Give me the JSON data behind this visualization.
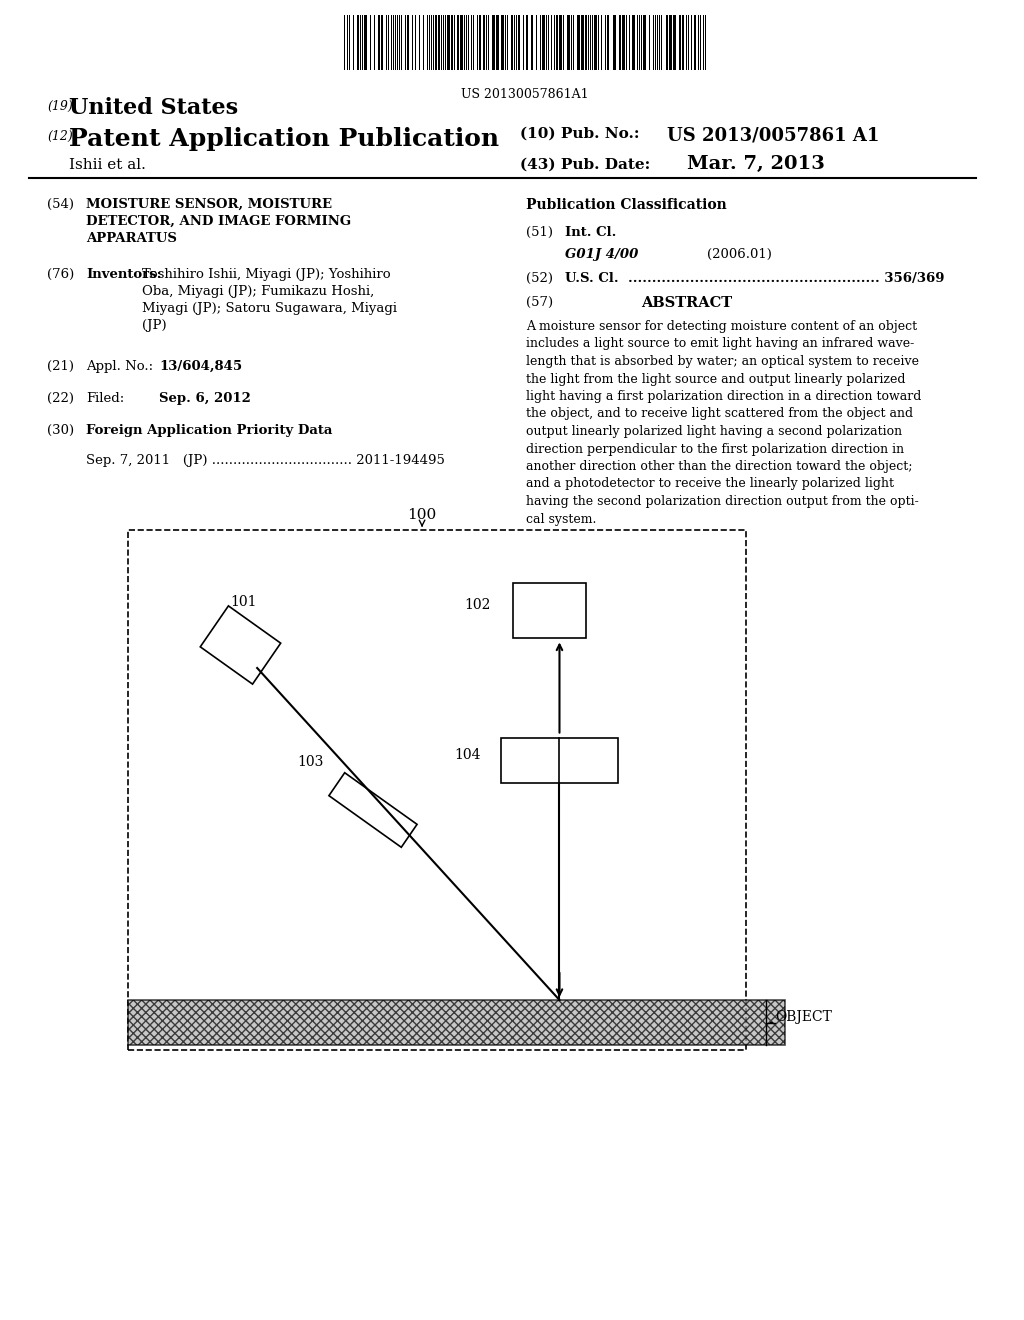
{
  "bg_color": "#ffffff",
  "barcode_text": "US 20130057861A1",
  "patent_number_label": "(19)",
  "patent_title_19": "United States",
  "patent_number_label2": "(12)",
  "patent_title_12": "Patent Application Publication",
  "pub_no_label": "(10) Pub. No.:",
  "pub_no": "US 2013/0057861 A1",
  "pub_date_label": "(43) Pub. Date:",
  "pub_date": "Mar. 7, 2013",
  "assignee": "Ishii et al.",
  "field54_label": "(54)",
  "field54_title": "MOISTURE SENSOR, MOISTURE\nDETECTOR, AND IMAGE FORMING\nAPPARATUS",
  "field76_label": "(76)",
  "field76_title": "Inventors:",
  "field76_inventors": "Toshihiro Ishii, Miyagi (JP); Yoshihiro\nOba, Miyagi (JP); Fumikazu Hoshi,\nMiyagi (JP); Satoru Sugawara, Miyagi\n(JP)",
  "field21_label": "(21)",
  "field21_title": "Appl. No.:",
  "field21_value": "13/604,845",
  "field22_label": "(22)",
  "field22_title": "Filed:",
  "field22_value": "Sep. 6, 2012",
  "field30_label": "(30)",
  "field30_title": "Foreign Application Priority Data",
  "field30_data": "Sep. 7, 2011   (JP) ................................. 2011-194495",
  "pub_class_title": "Publication Classification",
  "field51_label": "(51)",
  "field51_title": "Int. Cl.",
  "field51_class": "G01J 4/00",
  "field51_year": "(2006.01)",
  "field52_label": "(52)",
  "field52_title": "U.S. Cl.",
  "field52_dots": ".....................................................",
  "field52_value": "356/369",
  "field57_label": "(57)",
  "field57_title": "ABSTRACT",
  "abstract_text": "A moisture sensor for detecting moisture content of an object\nincludes a light source to emit light having an infrared wave-\nlength that is absorbed by water; an optical system to receive\nthe light from the light source and output linearly polarized\nlight having a first polarization direction in a direction toward\nthe object, and to receive light scattered from the object and\noutput linearly polarized light having a second polarization\ndirection perpendicular to the first polarization direction in\nanother direction other than the direction toward the object;\nand a photodetector to receive the linearly polarized light\nhaving the second polarization direction output from the opti-\ncal system.",
  "diagram_label": "100",
  "comp101_label": "101",
  "comp102_label": "102",
  "comp103_label": "103",
  "comp104_label": "104",
  "object_label": "OBJECT"
}
